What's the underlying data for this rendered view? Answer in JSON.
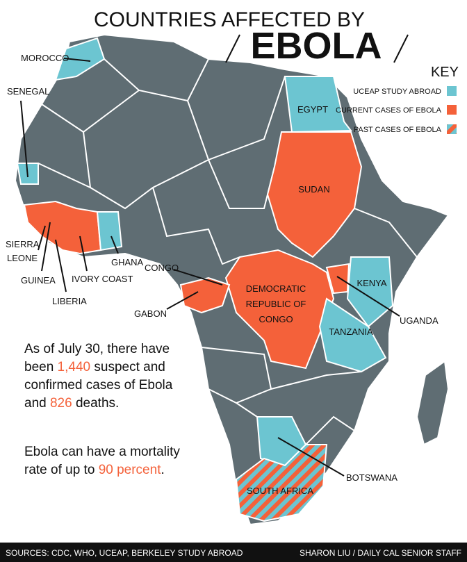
{
  "title": {
    "line1": "COUNTRIES AFFECTED BY",
    "line2": "EBOLA"
  },
  "key": {
    "heading": "KEY",
    "items": [
      "UCEAP STUDY ABROAD",
      "CURRENT CASES OF EBOLA",
      "PAST CASES OF EBOLA"
    ]
  },
  "countries": [
    {
      "lines": [
        "MOROCCO"
      ]
    },
    {
      "lines": [
        "SENEGAL"
      ]
    },
    {
      "lines": [
        "SIERRA",
        "LEONE"
      ]
    },
    {
      "lines": [
        "GUINEA"
      ]
    },
    {
      "lines": [
        "LIBERIA"
      ]
    },
    {
      "lines": [
        "IVORY COAST"
      ]
    },
    {
      "lines": [
        "GHANA"
      ]
    },
    {
      "lines": [
        "CONGO"
      ]
    },
    {
      "lines": [
        "GABON"
      ]
    },
    {
      "lines": [
        "DEMOCRATIC",
        "REPUBLIC OF",
        "CONGO"
      ]
    },
    {
      "lines": [
        "SUDAN"
      ]
    },
    {
      "lines": [
        "EGYPT"
      ]
    },
    {
      "lines": [
        "KENYA"
      ]
    },
    {
      "lines": [
        "UGANDA"
      ]
    },
    {
      "lines": [
        "TANZANIA"
      ]
    },
    {
      "lines": [
        "BOTSWANA"
      ]
    },
    {
      "lines": [
        "SOUTH AFRICA"
      ]
    }
  ],
  "stats": [
    [
      "As of July 30, there have been ",
      "1,440",
      " suspect and confirmed cases of Ebola and ",
      "826",
      " deaths."
    ],
    [
      "Ebola can have a mortality rate of up to ",
      "90 percent",
      "."
    ]
  ],
  "footer": {
    "sources": "SOURCES: CDC, WHO, UCEAP, BERKELEY STUDY ABROAD",
    "credit": "SHARON LIU / DAILY CAL SENIOR STAFF"
  }
}
